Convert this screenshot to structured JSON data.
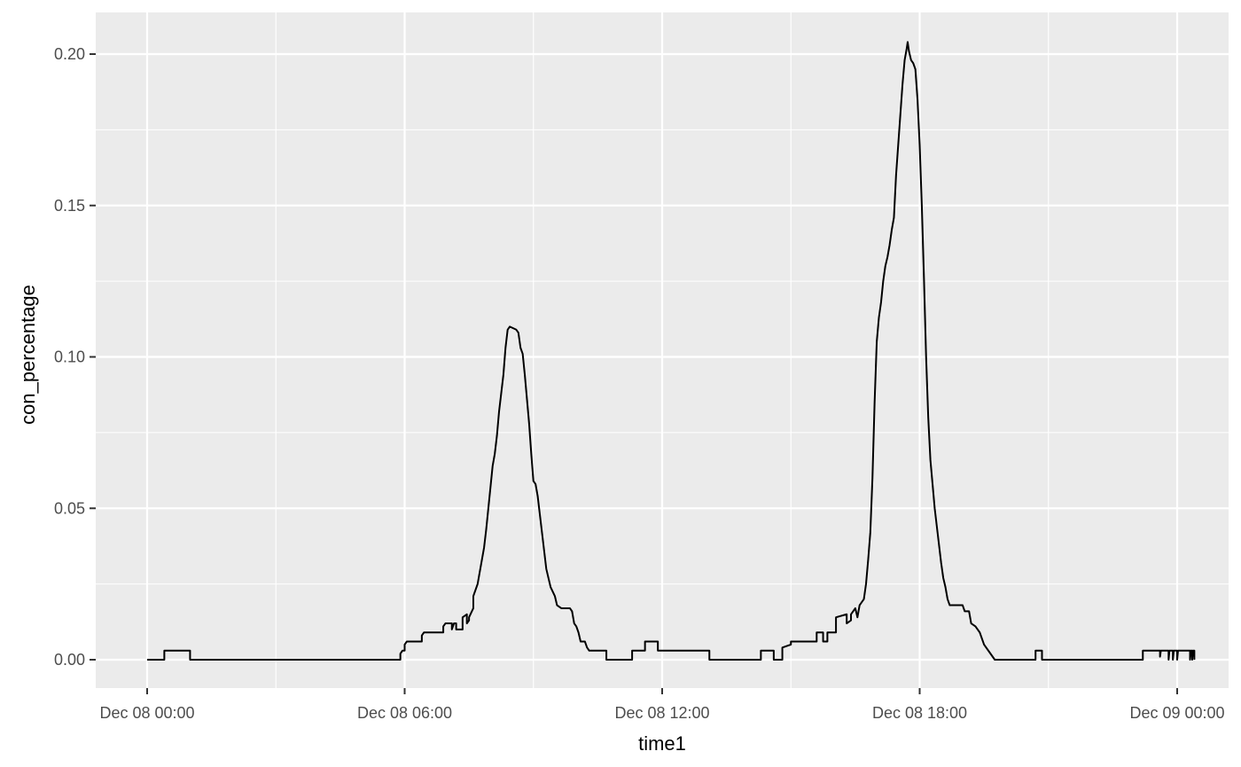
{
  "chart_data": {
    "type": "line",
    "title": "",
    "xlabel": "time1",
    "ylabel": "con_percentage",
    "x_unit": "hours since Dec 08 00:00",
    "xlim": [
      -2,
      42.4
    ],
    "ylim": [
      -0.0095,
      0.2145
    ],
    "x_ticks": [
      {
        "value": 0,
        "label": "Dec 08 00:00"
      },
      {
        "value": 6,
        "label": "Dec 08 06:00"
      },
      {
        "value": 12,
        "label": "Dec 08 12:00"
      },
      {
        "value": 18,
        "label": "Dec 08 18:00"
      },
      {
        "value": 24,
        "label": "Dec 09 00:00"
      }
    ],
    "x_minor": [
      3,
      9,
      15,
      21
    ],
    "y_ticks": [
      {
        "value": 0,
        "label": "0.00"
      },
      {
        "value": 0.05,
        "label": "0.05"
      },
      {
        "value": 0.1,
        "label": "0.10"
      },
      {
        "value": 0.15,
        "label": "0.15"
      },
      {
        "value": 0.2,
        "label": "0.20"
      }
    ],
    "y_minor": [
      0.025,
      0.075,
      0.125,
      0.175
    ],
    "series": [
      {
        "name": "con_percentage",
        "color": "#000000",
        "points": [
          [
            0.0,
            0.0
          ],
          [
            0.2,
            0.0
          ],
          [
            0.2,
            0.003
          ],
          [
            0.5,
            0.003
          ],
          [
            0.5,
            0.003
          ],
          [
            0.5,
            0.003
          ],
          [
            0.5,
            0.003
          ],
          [
            0.5,
            0.003
          ],
          [
            0.5,
            0.003
          ],
          [
            0.5,
            0.003
          ],
          [
            0.5,
            0.003
          ],
          [
            0.5,
            0.003
          ],
          [
            0.5,
            0.003
          ],
          [
            0.5,
            0.003
          ],
          [
            0.5,
            0.003
          ],
          [
            0.5,
            0.003
          ],
          [
            0.5,
            0.003
          ],
          [
            0.5,
            0.003
          ],
          [
            0.5,
            0.003
          ],
          [
            0.5,
            0.003
          ],
          [
            0.5,
            0.003
          ],
          [
            0.5,
            0.003
          ],
          [
            0.5,
            0.003
          ],
          [
            0.5,
            0.003
          ],
          [
            0.5,
            0.003
          ],
          [
            0.5,
            0.003
          ],
          [
            0.5,
            0.003
          ],
          [
            0.5,
            0.003
          ],
          [
            0.5,
            0.003
          ],
          [
            0.5,
            0.003
          ],
          [
            0.5,
            0.003
          ],
          [
            0.5,
            0.003
          ],
          [
            0.5,
            0.003
          ],
          [
            0.5,
            0.003
          ],
          [
            0.5,
            0.003
          ],
          [
            0.5,
            0.003
          ],
          [
            0.5,
            0.003
          ],
          [
            0.5,
            0.003
          ],
          [
            0.5,
            0.003
          ],
          [
            0.5,
            0.003
          ],
          [
            0.5,
            0.003
          ],
          [
            0.5,
            0.003
          ],
          [
            0.5,
            0.003
          ],
          [
            0.5,
            0.003
          ],
          [
            0.5,
            0.003
          ],
          [
            0.5,
            0.003
          ],
          [
            0.5,
            0.003
          ],
          [
            0.5,
            0.003
          ],
          [
            0.5,
            0.003
          ],
          [
            0.5,
            0.003
          ],
          [
            0.5,
            0.003
          ],
          [
            0.5,
            0.003
          ],
          [
            0.5,
            0.003
          ],
          [
            0.5,
            0.003
          ],
          [
            0.5,
            0.003
          ],
          [
            0.5,
            0.003
          ],
          [
            0.5,
            0.003
          ],
          [
            0.5,
            0.003
          ],
          [
            0.5,
            0.003
          ],
          [
            0.5,
            0.003
          ],
          [
            0.5,
            0.003
          ],
          [
            0.5,
            0.003
          ],
          [
            0.5,
            0.003
          ],
          [
            0.5,
            0.003
          ],
          [
            0.5,
            0.003
          ],
          [
            0.5,
            0.003
          ],
          [
            0.5,
            0.003
          ],
          [
            0.5,
            0.003
          ],
          [
            0.5,
            0.003
          ],
          [
            0.5,
            0.003
          ],
          [
            0.5,
            0.003
          ],
          [
            0.5,
            0.003
          ],
          [
            0.5,
            0.003
          ],
          [
            0.5,
            0.003
          ],
          [
            0.5,
            0.003
          ],
          [
            0.5,
            0.003
          ],
          [
            0.5,
            0.003
          ],
          [
            0.5,
            0.003
          ],
          [
            0.5,
            0.003
          ],
          [
            0.5,
            0.003
          ],
          [
            0.5,
            0.003
          ],
          [
            0.5,
            0.003
          ],
          [
            0.5,
            0.003
          ],
          [
            0.5,
            0.003
          ],
          [
            0.5,
            0.003
          ],
          [
            0.5,
            0.003
          ],
          [
            0.5,
            0.003
          ],
          [
            0.5,
            0.003
          ],
          [
            0.5,
            0.003
          ],
          [
            0.5,
            0.003
          ],
          [
            0.5,
            0.003
          ],
          [
            0.5,
            0.003
          ],
          [
            0.5,
            0.003
          ],
          [
            0.5,
            0.003
          ],
          [
            0.5,
            0.003
          ],
          [
            0.5,
            0.003
          ],
          [
            0.5,
            0.003
          ],
          [
            0.5,
            0.003
          ],
          [
            0.5,
            0.003
          ],
          [
            0.5,
            0.003
          ],
          [
            0.5,
            0.003
          ],
          [
            0.5,
            0.003
          ],
          [
            0.5,
            0.003
          ],
          [
            0.5,
            0.003
          ],
          [
            0.5,
            0.003
          ],
          [
            0.5,
            0.003
          ],
          [
            0.5,
            0.003
          ],
          [
            0.5,
            0.003
          ],
          [
            0.5,
            0.003
          ],
          [
            0.5,
            0.003
          ],
          [
            0.5,
            0.003
          ],
          [
            0.5,
            0.003
          ],
          [
            0.5,
            0.003
          ],
          [
            0.5,
            0.003
          ],
          [
            0.5,
            0.003
          ],
          [
            0.5,
            0.003
          ],
          [
            0.5,
            0.003
          ],
          [
            0.5,
            0.003
          ],
          [
            0.5,
            0.003
          ],
          [
            0.5,
            0.003
          ],
          [
            0.5,
            0.003
          ],
          [
            0.5,
            0.003
          ],
          [
            0.5,
            0.003
          ],
          [
            0.5,
            0.003
          ],
          [
            0.5,
            0.003
          ],
          [
            0.5,
            0.003
          ],
          [
            0.5,
            0.003
          ],
          [
            0.5,
            0.0
          ]
        ]
      }
    ]
  }
}
